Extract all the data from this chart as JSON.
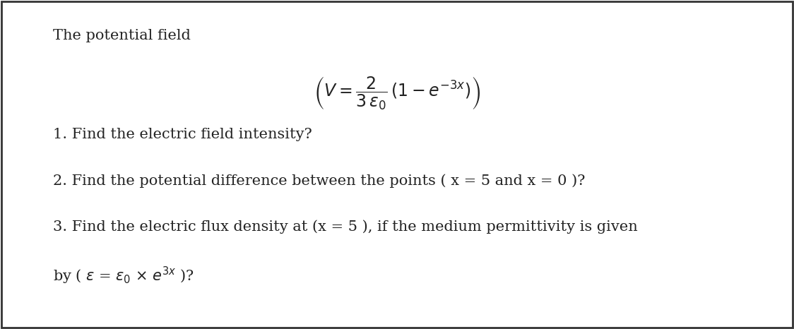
{
  "background_color": "#ffffff",
  "border_color": "#333333",
  "title_text": "The potential field",
  "line1": "1. Find the electric field intensity?",
  "line2": "2. Find the potential difference between the points ( x = 5 and x = 0 )?",
  "line3": "3. Find the electric flux density at (x = 5 ), if the medium permittivity is given",
  "line4_prefix": "by ( ",
  "line4_suffix": " )?",
  "text_color": "#222222",
  "font_size_title": 15,
  "font_size_body": 15,
  "font_size_formula": 17,
  "fig_width": 11.24,
  "fig_height": 4.66,
  "dpi": 100
}
